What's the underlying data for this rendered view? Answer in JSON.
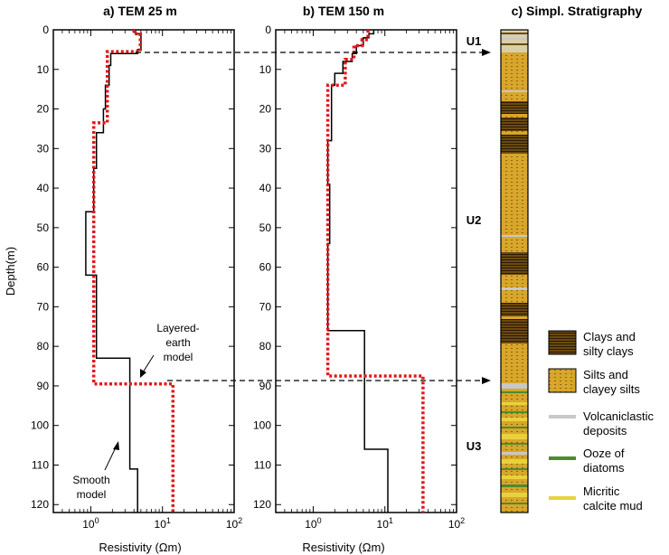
{
  "figure": {
    "panel_a_title": "a) TEM 25 m",
    "panel_b_title": "b) TEM 150 m",
    "panel_c_title": "c) Simpl. Stratigraphy",
    "ylabel": "Depth(m)",
    "xlabel": "Resistivity (Ωm)",
    "y_ticks": [
      "0",
      "10",
      "20",
      "30",
      "40",
      "50",
      "60",
      "70",
      "80",
      "90",
      "100",
      "110",
      "120"
    ],
    "annotation_layered": [
      "Layered-",
      "earth",
      "model"
    ],
    "annotation_smooth": [
      "Smooth",
      "model"
    ],
    "units": [
      "U1",
      "U2",
      "U3"
    ]
  },
  "legend": {
    "items": [
      {
        "label": [
          "Clays and",
          "silty clays"
        ],
        "type": "clay"
      },
      {
        "label": [
          "Silts and",
          "clayey silts"
        ],
        "type": "silt"
      },
      {
        "label": [
          "Volcaniclastic",
          "deposits"
        ],
        "type": "volc"
      },
      {
        "label": [
          "Ooze of",
          "diatoms"
        ],
        "type": "ooze"
      },
      {
        "label": [
          "Micritic",
          "calcite mud"
        ],
        "type": "micrite"
      }
    ]
  },
  "colors": {
    "layered": "#e0191b",
    "smooth": "#000000",
    "silt": "#d8a62a",
    "clay": "#6b4a10",
    "volc": "#c8c8c8",
    "ooze": "#4e8b2e",
    "micrite": "#e8d23c"
  },
  "chart_data": [
    {
      "type": "line",
      "title": "a) TEM 25 m",
      "xlabel": "Resistivity (Ωm)",
      "ylabel": "Depth(m)",
      "xscale": "log",
      "xlim": [
        0.3,
        100
      ],
      "ylim": [
        122,
        0
      ],
      "x_ticks": [
        1,
        10,
        100
      ],
      "series": [
        {
          "name": "Smooth model",
          "style": "solid-black",
          "points": [
            [
              4.2,
              0
            ],
            [
              4.2,
              1
            ],
            [
              5,
              1
            ],
            [
              5,
              5
            ],
            [
              4.5,
              5
            ],
            [
              4.5,
              6
            ],
            [
              1.9,
              6
            ],
            [
              1.9,
              9
            ],
            [
              1.8,
              9
            ],
            [
              1.8,
              14
            ],
            [
              1.6,
              14
            ],
            [
              1.6,
              20
            ],
            [
              1.5,
              20
            ],
            [
              1.5,
              26
            ],
            [
              1.2,
              26
            ],
            [
              1.2,
              35
            ],
            [
              1.1,
              35
            ],
            [
              1.1,
              46
            ],
            [
              0.85,
              46
            ],
            [
              0.85,
              62
            ],
            [
              1.2,
              62
            ],
            [
              1.2,
              83
            ],
            [
              3.5,
              83
            ],
            [
              3.5,
              111
            ],
            [
              4.5,
              111
            ],
            [
              4.5,
              122
            ]
          ]
        },
        {
          "name": "Layered-earth model",
          "style": "dotted-red",
          "points": [
            [
              4,
              0
            ],
            [
              4,
              1
            ],
            [
              4.9,
              1
            ],
            [
              4.9,
              5.5
            ],
            [
              1.7,
              5.5
            ],
            [
              1.7,
              23.5
            ],
            [
              1.1,
              23.5
            ],
            [
              1.1,
              89.5
            ],
            [
              14,
              89.5
            ],
            [
              14,
              122
            ]
          ]
        }
      ]
    },
    {
      "type": "line",
      "title": "b) TEM 150 m",
      "xlabel": "Resistivity (Ωm)",
      "ylabel": "",
      "xscale": "log",
      "xlim": [
        0.3,
        100
      ],
      "ylim": [
        122,
        0
      ],
      "x_ticks": [
        1,
        10,
        100
      ],
      "series": [
        {
          "name": "Smooth model",
          "style": "solid-black",
          "points": [
            [
              7,
              0
            ],
            [
              7,
              1
            ],
            [
              6,
              1
            ],
            [
              6,
              2
            ],
            [
              5,
              2
            ],
            [
              5,
              4
            ],
            [
              4,
              4
            ],
            [
              4,
              6
            ],
            [
              3.5,
              6
            ],
            [
              3.5,
              8
            ],
            [
              2.6,
              8
            ],
            [
              2.6,
              11
            ],
            [
              2,
              11
            ],
            [
              2,
              14
            ],
            [
              1.8,
              14
            ],
            [
              1.8,
              28
            ],
            [
              1.6,
              28
            ],
            [
              1.6,
              39
            ],
            [
              1.7,
              39
            ],
            [
              1.7,
              54
            ],
            [
              1.6,
              54
            ],
            [
              1.6,
              76
            ],
            [
              5.2,
              76
            ],
            [
              5.2,
              106
            ],
            [
              11,
              106
            ],
            [
              11,
              122
            ]
          ]
        },
        {
          "name": "Layered-earth model",
          "style": "dotted-red",
          "points": [
            [
              5.8,
              0
            ],
            [
              5.8,
              2.5
            ],
            [
              4.8,
              2.5
            ],
            [
              4.8,
              4
            ],
            [
              3.7,
              4
            ],
            [
              3.7,
              7.5
            ],
            [
              2.8,
              7.5
            ],
            [
              2.8,
              14
            ],
            [
              1.6,
              14
            ],
            [
              1.6,
              87.5
            ],
            [
              34,
              87.5
            ],
            [
              34,
              122
            ]
          ]
        }
      ]
    }
  ]
}
